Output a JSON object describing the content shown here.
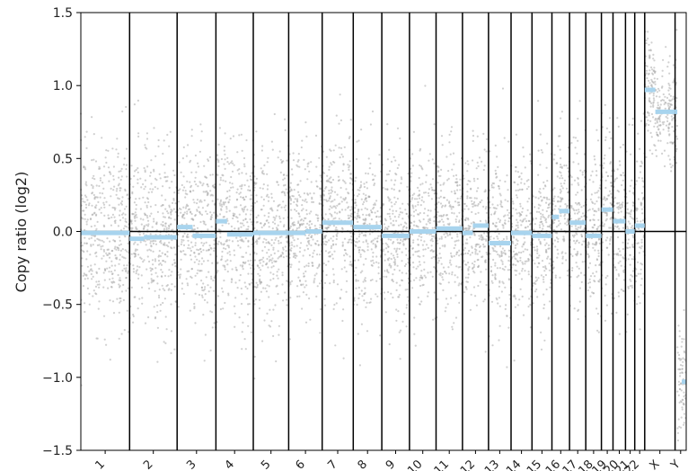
{
  "chart_data": {
    "type": "scatter",
    "ylabel": "Copy ratio (log2)",
    "ylim": [
      -1.5,
      1.5
    ],
    "yticks": [
      {
        "value": 1.5,
        "label": "1.5"
      },
      {
        "value": 1.0,
        "label": "1.0"
      },
      {
        "value": 0.5,
        "label": "0.5"
      },
      {
        "value": 0.0,
        "label": "0.0"
      },
      {
        "value": -0.5,
        "label": "−0.5"
      },
      {
        "value": -1.0,
        "label": "−1.0"
      },
      {
        "value": -1.5,
        "label": "−1.5"
      }
    ],
    "zero_line": 0,
    "point_color": "#a9a9a9",
    "segment_color": "#a8d4ee",
    "boundary_color": "#000000",
    "chromosomes": [
      {
        "label": "1",
        "size": 249,
        "noise_sd": 0.3,
        "segments": [
          {
            "start": 0.0,
            "end": 1.0,
            "value": -0.01
          }
        ]
      },
      {
        "label": "2",
        "size": 243,
        "noise_sd": 0.3,
        "segments": [
          {
            "start": 0.0,
            "end": 0.3,
            "value": -0.05
          },
          {
            "start": 0.3,
            "end": 1.0,
            "value": -0.04
          }
        ]
      },
      {
        "label": "3",
        "size": 198,
        "noise_sd": 0.3,
        "segments": [
          {
            "start": 0.0,
            "end": 0.4,
            "value": 0.03
          },
          {
            "start": 0.4,
            "end": 1.0,
            "value": -0.03
          }
        ]
      },
      {
        "label": "4",
        "size": 191,
        "noise_sd": 0.3,
        "segments": [
          {
            "start": 0.0,
            "end": 0.3,
            "value": 0.07
          },
          {
            "start": 0.3,
            "end": 1.0,
            "value": -0.02
          }
        ]
      },
      {
        "label": "5",
        "size": 181,
        "noise_sd": 0.3,
        "segments": [
          {
            "start": 0.0,
            "end": 1.0,
            "value": -0.01
          }
        ]
      },
      {
        "label": "6",
        "size": 171,
        "noise_sd": 0.3,
        "segments": [
          {
            "start": 0.0,
            "end": 0.5,
            "value": -0.01
          },
          {
            "start": 0.5,
            "end": 1.0,
            "value": 0.0
          }
        ]
      },
      {
        "label": "7",
        "size": 159,
        "noise_sd": 0.28,
        "segments": [
          {
            "start": 0.0,
            "end": 1.0,
            "value": 0.06
          }
        ]
      },
      {
        "label": "8",
        "size": 146,
        "noise_sd": 0.28,
        "segments": [
          {
            "start": 0.0,
            "end": 1.0,
            "value": 0.03
          }
        ]
      },
      {
        "label": "9",
        "size": 141,
        "noise_sd": 0.28,
        "segments": [
          {
            "start": 0.0,
            "end": 1.0,
            "value": -0.03
          }
        ]
      },
      {
        "label": "10",
        "size": 136,
        "noise_sd": 0.28,
        "segments": [
          {
            "start": 0.0,
            "end": 1.0,
            "value": 0.0
          }
        ]
      },
      {
        "label": "11",
        "size": 135,
        "noise_sd": 0.28,
        "segments": [
          {
            "start": 0.0,
            "end": 1.0,
            "value": 0.02
          }
        ]
      },
      {
        "label": "12",
        "size": 133,
        "noise_sd": 0.28,
        "segments": [
          {
            "start": 0.0,
            "end": 0.4,
            "value": -0.01
          },
          {
            "start": 0.4,
            "end": 1.0,
            "value": 0.04
          }
        ]
      },
      {
        "label": "13",
        "size": 115,
        "noise_sd": 0.28,
        "segments": [
          {
            "start": 0.0,
            "end": 1.0,
            "value": -0.08
          }
        ]
      },
      {
        "label": "14",
        "size": 107,
        "noise_sd": 0.28,
        "segments": [
          {
            "start": 0.0,
            "end": 1.0,
            "value": -0.01
          }
        ]
      },
      {
        "label": "15",
        "size": 102,
        "noise_sd": 0.28,
        "segments": [
          {
            "start": 0.0,
            "end": 1.0,
            "value": -0.03
          }
        ]
      },
      {
        "label": "16",
        "size": 90,
        "noise_sd": 0.28,
        "segments": [
          {
            "start": 0.0,
            "end": 0.4,
            "value": 0.1
          },
          {
            "start": 0.4,
            "end": 1.0,
            "value": 0.14
          }
        ]
      },
      {
        "label": "17",
        "size": 83,
        "noise_sd": 0.28,
        "segments": [
          {
            "start": 0.0,
            "end": 1.0,
            "value": 0.06
          }
        ]
      },
      {
        "label": "18",
        "size": 80,
        "noise_sd": 0.28,
        "segments": [
          {
            "start": 0.0,
            "end": 1.0,
            "value": -0.03
          }
        ]
      },
      {
        "label": "19",
        "size": 59,
        "noise_sd": 0.28,
        "segments": [
          {
            "start": 0.0,
            "end": 1.0,
            "value": 0.15
          }
        ]
      },
      {
        "label": "20",
        "size": 64,
        "noise_sd": 0.28,
        "segments": [
          {
            "start": 0.0,
            "end": 1.0,
            "value": 0.07
          }
        ]
      },
      {
        "label": "21",
        "size": 47,
        "noise_sd": 0.28,
        "segments": [
          {
            "start": 0.0,
            "end": 1.0,
            "value": 0.0
          }
        ]
      },
      {
        "label": "22",
        "size": 51,
        "noise_sd": 0.28,
        "segments": [
          {
            "start": 0.0,
            "end": 1.0,
            "value": 0.04
          }
        ]
      },
      {
        "label": "X",
        "size": 155,
        "noise_sd": 0.18,
        "segments": [
          {
            "start": 0.0,
            "end": 0.35,
            "value": 0.97
          },
          {
            "start": 0.35,
            "end": 1.0,
            "value": 0.82
          }
        ]
      },
      {
        "label": "Y",
        "size": 57,
        "noise_sd": 0.2,
        "segments": [
          {
            "start": 0.0,
            "end": 0.2,
            "value": 0.82
          },
          {
            "start": 0.6,
            "end": 1.0,
            "value": -1.03
          }
        ]
      }
    ]
  }
}
